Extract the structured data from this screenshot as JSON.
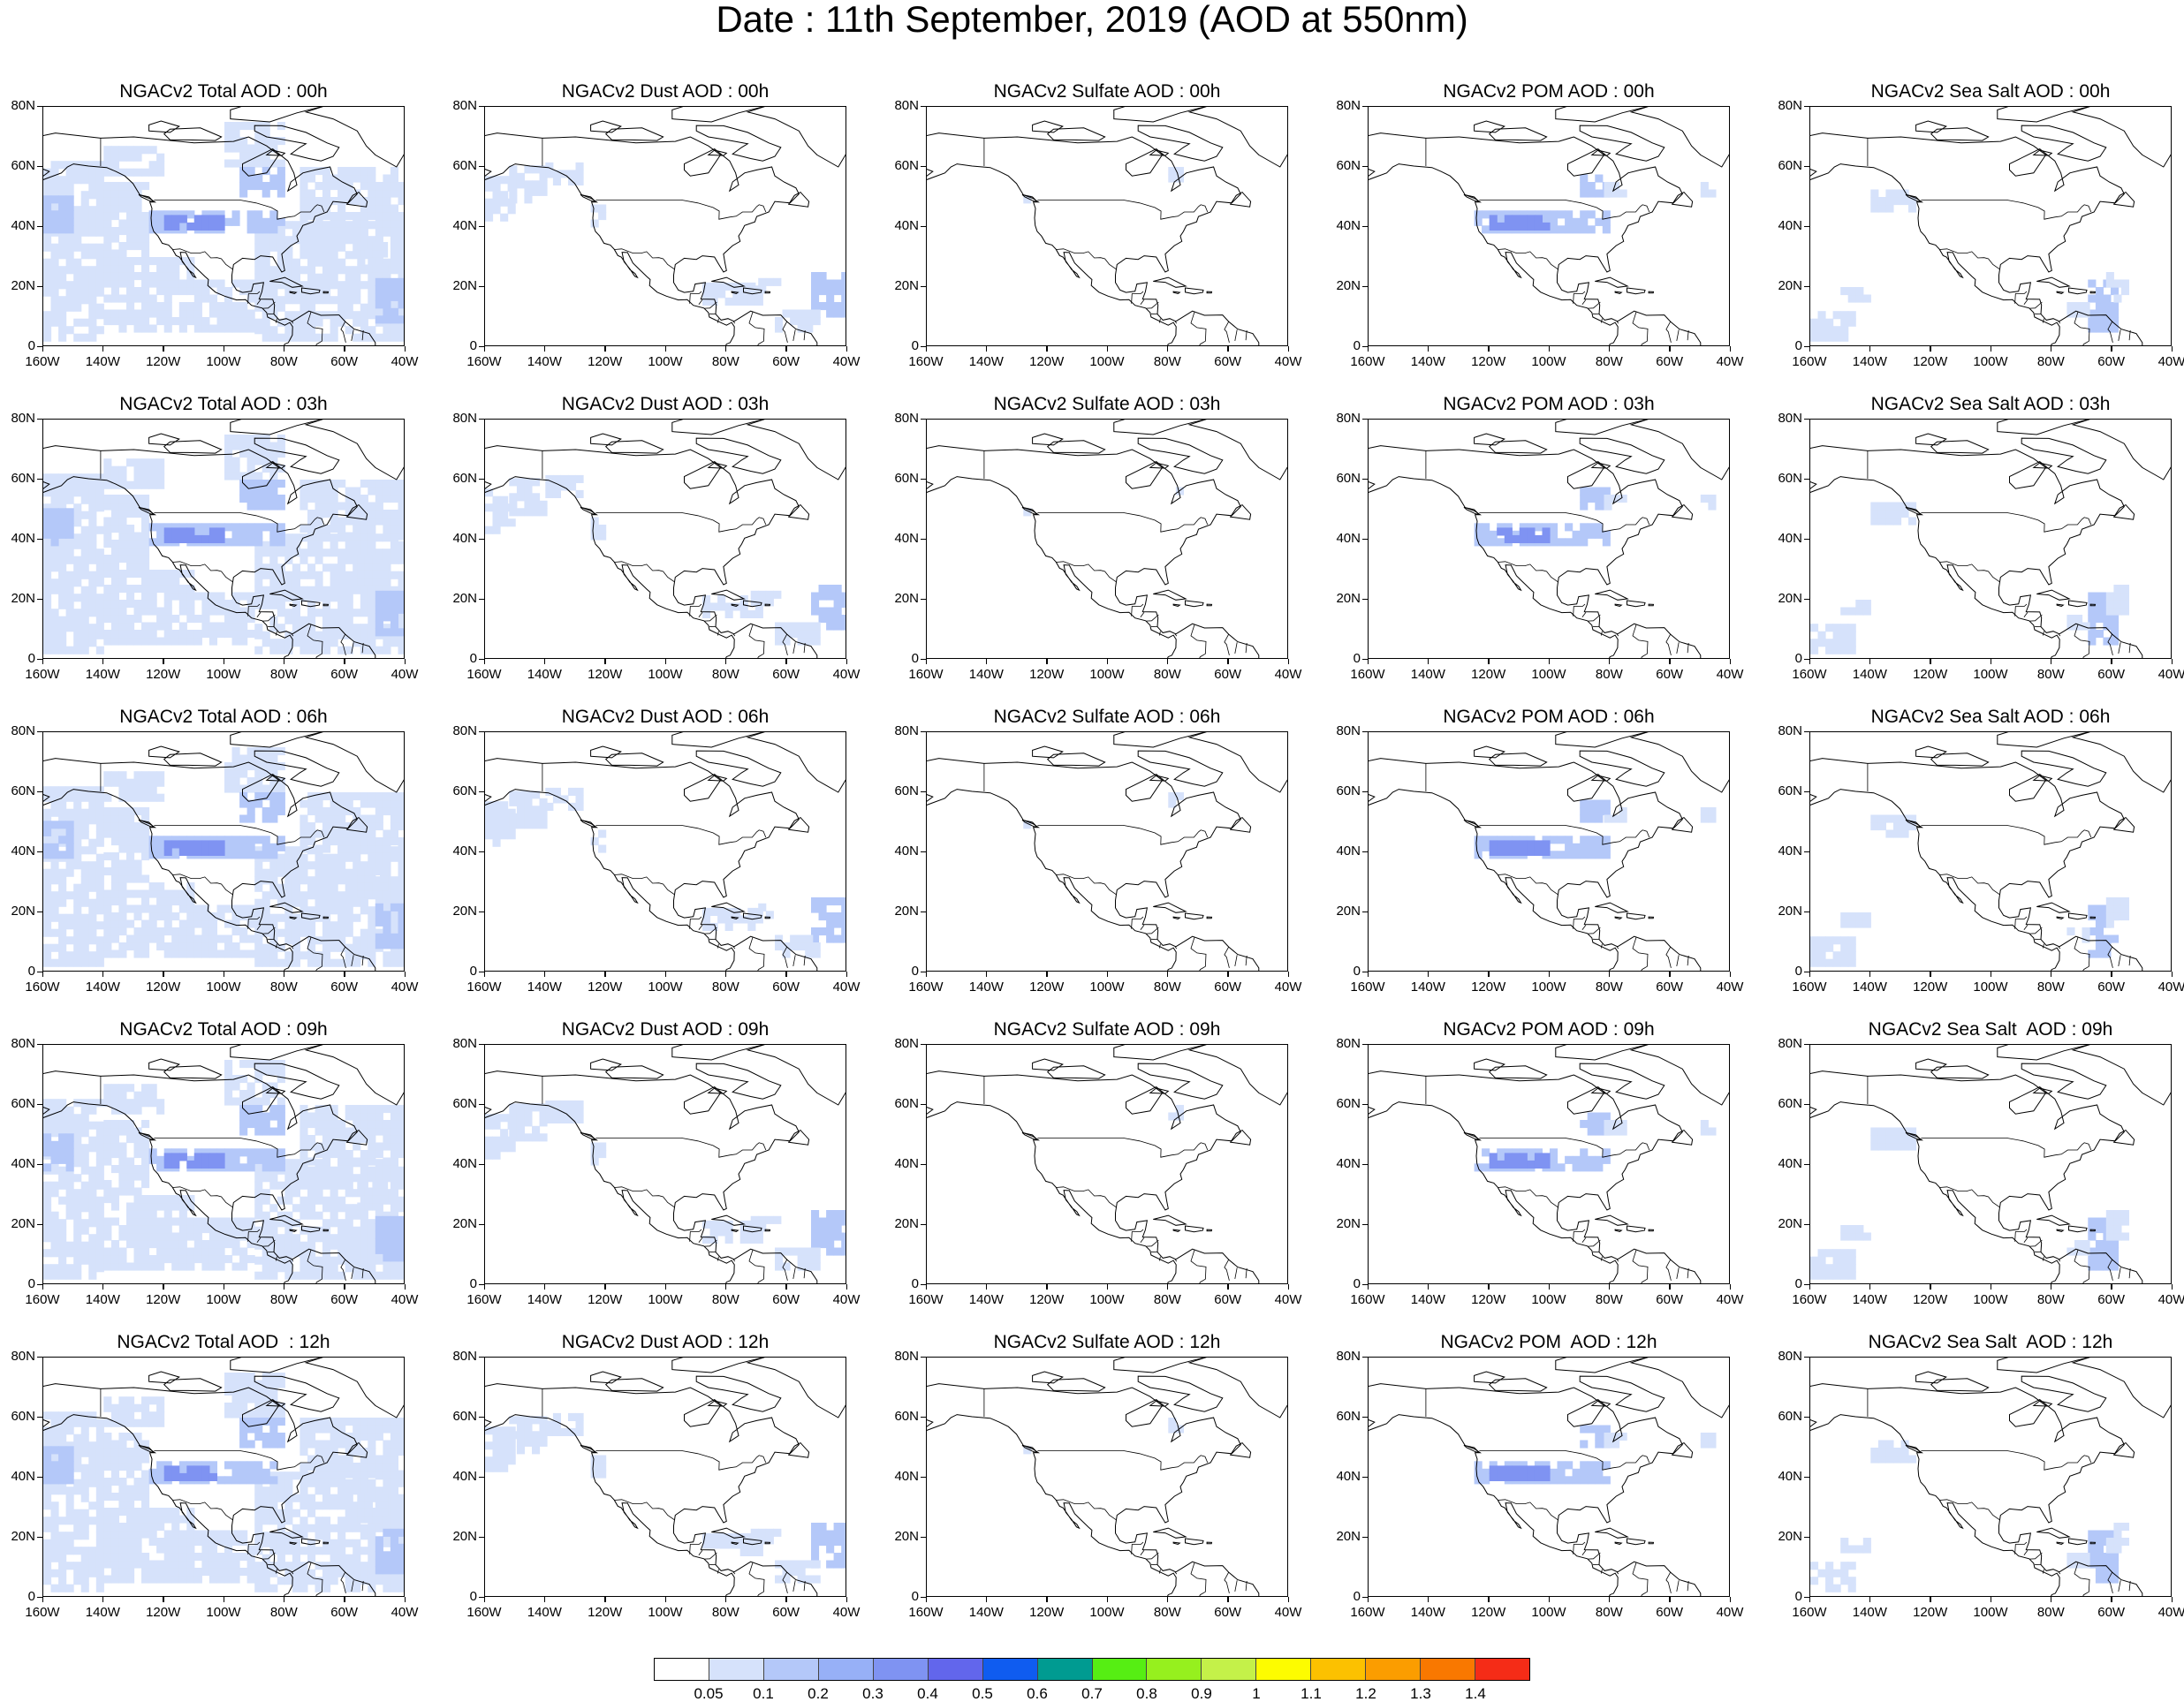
{
  "title": "Date : 11th September, 2019 (AOD at 550nm)",
  "y_ticks": [
    "80N",
    "60N",
    "40N",
    "20N",
    "0"
  ],
  "x_ticks": [
    "160W",
    "140W",
    "120W",
    "100W",
    "80W",
    "60W",
    "40W"
  ],
  "panels": [
    {
      "title": "NGACv2 Total AOD : 00h",
      "species": "total"
    },
    {
      "title": "NGACv2 Dust AOD : 00h",
      "species": "dust"
    },
    {
      "title": "NGACv2 Sulfate AOD : 00h",
      "species": "sulfate"
    },
    {
      "title": "NGACv2 POM AOD : 00h",
      "species": "pom"
    },
    {
      "title": "NGACv2 Sea Salt AOD : 00h",
      "species": "seasalt"
    },
    {
      "title": "NGACv2 Total AOD : 03h",
      "species": "total"
    },
    {
      "title": "NGACv2 Dust AOD : 03h",
      "species": "dust"
    },
    {
      "title": "NGACv2 Sulfate AOD : 03h",
      "species": "sulfate"
    },
    {
      "title": "NGACv2 POM AOD : 03h",
      "species": "pom"
    },
    {
      "title": "NGACv2 Sea Salt AOD : 03h",
      "species": "seasalt"
    },
    {
      "title": "NGACv2 Total AOD : 06h",
      "species": "total"
    },
    {
      "title": "NGACv2 Dust AOD : 06h",
      "species": "dust"
    },
    {
      "title": "NGACv2 Sulfate AOD : 06h",
      "species": "sulfate"
    },
    {
      "title": "NGACv2 POM AOD : 06h",
      "species": "pom"
    },
    {
      "title": "NGACv2 Sea Salt AOD : 06h",
      "species": "seasalt"
    },
    {
      "title": "NGACv2 Total AOD : 09h",
      "species": "total"
    },
    {
      "title": "NGACv2 Dust AOD : 09h",
      "species": "dust"
    },
    {
      "title": "NGACv2 Sulfate AOD : 09h",
      "species": "sulfate"
    },
    {
      "title": "NGACv2 POM AOD : 09h",
      "species": "pom"
    },
    {
      "title": "NGACv2 Sea Salt  AOD : 09h",
      "species": "seasalt"
    },
    {
      "title": "NGACv2 Total AOD  : 12h",
      "species": "total"
    },
    {
      "title": "NGACv2 Dust AOD : 12h",
      "species": "dust"
    },
    {
      "title": "NGACv2 Sulfate AOD : 12h",
      "species": "sulfate"
    },
    {
      "title": "NGACv2 POM  AOD : 12h",
      "species": "pom"
    },
    {
      "title": "NGACv2 Sea Salt  AOD : 12h",
      "species": "seasalt"
    }
  ],
  "colorbar": {
    "labels": [
      "0.05",
      "0.1",
      "0.2",
      "0.3",
      "0.4",
      "0.5",
      "0.6",
      "0.7",
      "0.8",
      "0.9",
      "1",
      "1.1",
      "1.2",
      "1.3",
      "1.4"
    ],
    "colors": [
      "#ffffff",
      "#d6e2fb",
      "#b4c8f9",
      "#97b0f7",
      "#7f93f2",
      "#6266ec",
      "#0f5cf0",
      "#009b91",
      "#56ee13",
      "#96f01e",
      "#c4f149",
      "#fdfc00",
      "#fcc100",
      "#fb9d00",
      "#f97800",
      "#f52c17"
    ]
  },
  "map": {
    "lon_range": [
      -160,
      -40
    ],
    "lat_range": [
      0,
      80
    ],
    "coast_color": "#000000",
    "aod_low_color": "#d6e2fb",
    "aod_mid_color": "#b4c8f9",
    "aod_high_color": "#7f93f2"
  }
}
